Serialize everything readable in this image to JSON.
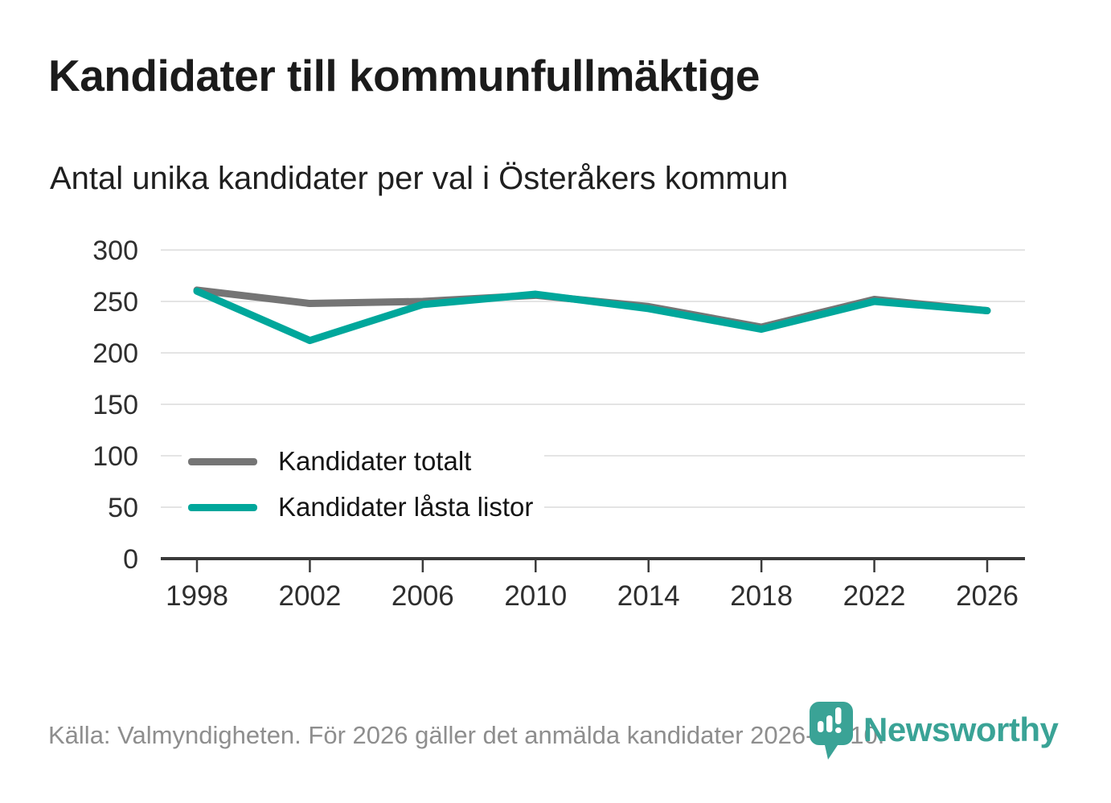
{
  "header": {
    "title": "Kandidater till kommunfullmäktige",
    "subtitle": "Antal unika kandidater per val i Österåkers kommun"
  },
  "chart_data": {
    "type": "line",
    "title": "Kandidater till kommunfullmäktige",
    "subtitle": "Antal unika kandidater per val i Österåkers kommun",
    "categories": [
      "1998",
      "2002",
      "2006",
      "2010",
      "2014",
      "2018",
      "2022",
      "2026"
    ],
    "series": [
      {
        "name": "Kandidater totalt",
        "color": "#757575",
        "values": [
          261,
          248,
          250,
          256,
          245,
          225,
          252,
          241
        ]
      },
      {
        "name": "Kandidater låsta listor",
        "color": "#00a79b",
        "values": [
          260,
          212,
          247,
          257,
          243,
          223,
          250,
          241
        ]
      }
    ],
    "xlabel": "",
    "ylabel": "",
    "ylim": [
      0,
      300
    ],
    "yticks": [
      0,
      50,
      100,
      150,
      200,
      250,
      300
    ],
    "grid": true,
    "legend_position": "inside-left",
    "gridline_color": "#e4e4e4",
    "axis_color": "#3a3a3a",
    "tick_label_color": "#2e2e2e"
  },
  "footer": {
    "source": "Källa: Valmyndigheten. För 2026 gäller det anmälda kandidater 2026-04-10.",
    "brand": "Newsworthy",
    "brand_color": "#3aa396"
  }
}
